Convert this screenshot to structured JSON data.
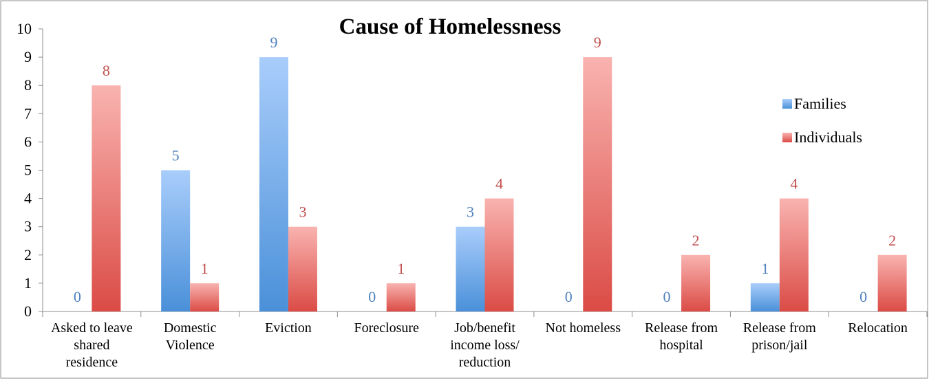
{
  "chart_data": {
    "type": "bar",
    "title": "Cause of Homelessness",
    "xlabel": "",
    "ylabel": "",
    "ylim": [
      0,
      10
    ],
    "yticks": [
      "0",
      "1",
      "2",
      "3",
      "4",
      "5",
      "6",
      "7",
      "8",
      "9",
      "10"
    ],
    "grid": false,
    "legend_position": "right",
    "categories": [
      [
        "Asked to leave",
        "shared",
        "residence"
      ],
      [
        "Domestic",
        "Violence"
      ],
      [
        "Eviction"
      ],
      [
        "Foreclosure"
      ],
      [
        "Job/benefit",
        "income loss/",
        "reduction"
      ],
      [
        "Not homeless"
      ],
      [
        "Release from",
        "hospital"
      ],
      [
        "Release from",
        "prison/jail"
      ],
      [
        "Relocation"
      ]
    ],
    "series": [
      {
        "name": "Families",
        "values": [
          0,
          5,
          9,
          0,
          3,
          0,
          0,
          1,
          0
        ],
        "color": "#5b9bd5",
        "label_color": "#4f81bd"
      },
      {
        "name": "Individuals",
        "values": [
          8,
          1,
          3,
          1,
          4,
          9,
          2,
          4,
          2
        ],
        "color": "#e0605a",
        "label_color": "#c0504d"
      }
    ]
  }
}
